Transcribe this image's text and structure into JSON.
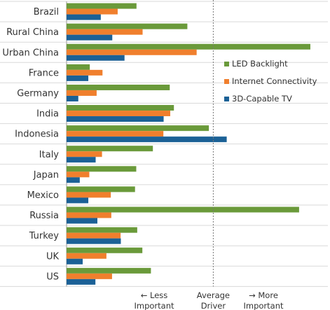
{
  "chart_data": {
    "type": "bar",
    "orientation": "horizontal",
    "title": "",
    "xlabel": "",
    "ylabel": "",
    "xlim": [
      0,
      1
    ],
    "categories": [
      "Brazil",
      "Rural China",
      "Urban China",
      "France",
      "Germany",
      "India",
      "Indonesia",
      "Italy",
      "Japan",
      "Mexico",
      "Russia",
      "Turkey",
      "UK",
      "US"
    ],
    "series": [
      {
        "name": "LED Backlight",
        "color": "#6a9a3a",
        "values": [
          0.286,
          0.494,
          0.997,
          0.095,
          0.422,
          0.439,
          0.582,
          0.353,
          0.285,
          0.28,
          0.951,
          0.289,
          0.31,
          0.345
        ]
      },
      {
        "name": "Internet Connectivity",
        "color": "#f07f2d",
        "values": [
          0.209,
          0.311,
          0.532,
          0.147,
          0.123,
          0.424,
          0.396,
          0.145,
          0.093,
          0.181,
          0.183,
          0.221,
          0.163,
          0.186
        ]
      },
      {
        "name": "3D-Capable TV",
        "color": "#1b6196",
        "values": [
          0.14,
          0.187,
          0.237,
          0.089,
          0.048,
          0.397,
          0.655,
          0.119,
          0.054,
          0.089,
          0.126,
          0.222,
          0.066,
          0.118
        ]
      }
    ],
    "reference_line": {
      "value": 0.6,
      "style": "dotted"
    },
    "axis_annotations": [
      {
        "arrow": "←",
        "line1": "Less",
        "line2": "Important"
      },
      {
        "arrow": "",
        "line1": "Average",
        "line2": "Driver"
      },
      {
        "arrow": "→",
        "line1": "More",
        "line2": "Important"
      }
    ],
    "grid": "horizontal separators between categories",
    "legend_position": "right"
  }
}
